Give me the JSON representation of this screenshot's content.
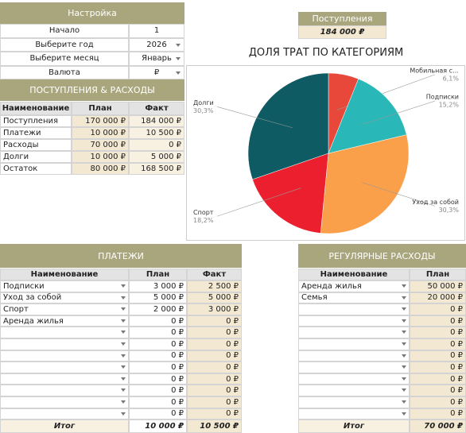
{
  "settings": {
    "title": "Настройка",
    "rows": [
      [
        "Начало",
        1
      ],
      [
        "Выберите год",
        2026
      ],
      [
        "Выберите месяц",
        "Январь"
      ],
      [
        "Валюта",
        "₽"
      ]
    ]
  },
  "income_box": {
    "title": "Поступления",
    "value": "184 000 ₽"
  },
  "summary": {
    "title": "ПОСТУПЛЕНИЯ & РАСХОДЫ",
    "columns": [
      "Наименование",
      "План",
      "Факт"
    ],
    "rows": [
      [
        "Поступления",
        "170 000 ₽",
        "184 000 ₽"
      ],
      [
        "Платежи",
        "10 000 ₽",
        "10 500 ₽"
      ],
      [
        "Расходы",
        "70 000 ₽",
        "0 ₽"
      ],
      [
        "Долги",
        "10 000 ₽",
        "5 000 ₽"
      ],
      [
        "Остаток",
        "80 000 ₽",
        "168 500 ₽"
      ]
    ]
  },
  "chart_data": {
    "type": "pie",
    "title": "ДОЛЯ ТРАТ ПО КАТЕГОРИЯМ",
    "categories": [
      "Мобильная с…",
      "Подписки",
      "Уход за собой",
      "Спорт",
      "Долги"
    ],
    "values": [
      6.1,
      15.2,
      30.3,
      18.2,
      30.3
    ],
    "value_labels": [
      "6,1%",
      "15,2%",
      "30,3%",
      "18,2%",
      "30,3%"
    ],
    "colors": [
      "#e8483a",
      "#2ab7b8",
      "#fa9f4a",
      "#ec1f2e",
      "#0f5b63"
    ]
  },
  "payments": {
    "title": "ПЛАТЕЖИ",
    "columns": [
      "Наименование",
      "План",
      "Факт"
    ],
    "rows": [
      [
        "Подписки",
        "3 000 ₽",
        "2 500 ₽"
      ],
      [
        "Уход за собой",
        "5 000 ₽",
        "5 000 ₽"
      ],
      [
        "Спорт",
        "2 000 ₽",
        "3 000 ₽"
      ],
      [
        "Аренда жилья",
        "0 ₽",
        "0 ₽"
      ],
      [
        null,
        "0 ₽",
        "0 ₽"
      ],
      [
        null,
        "0 ₽",
        "0 ₽"
      ],
      [
        null,
        "0 ₽",
        "0 ₽"
      ],
      [
        null,
        "0 ₽",
        "0 ₽"
      ],
      [
        null,
        "0 ₽",
        "0 ₽"
      ],
      [
        null,
        "0 ₽",
        "0 ₽"
      ],
      [
        null,
        "0 ₽",
        "0 ₽"
      ],
      [
        null,
        "0 ₽",
        "0 ₽"
      ]
    ],
    "total": [
      "Итог",
      "10 000 ₽",
      "10 500 ₽"
    ]
  },
  "regular": {
    "title": "РЕГУЛЯРНЫЕ РАСХОДЫ",
    "columns": [
      "Наименование",
      "План"
    ],
    "rows": [
      [
        "Аренда жилья",
        "50 000 ₽"
      ],
      [
        "Семья",
        "20 000 ₽"
      ],
      [
        null,
        "0 ₽"
      ],
      [
        null,
        "0 ₽"
      ],
      [
        null,
        "0 ₽"
      ],
      [
        null,
        "0 ₽"
      ],
      [
        null,
        "0 ₽"
      ],
      [
        null,
        "0 ₽"
      ],
      [
        null,
        "0 ₽"
      ],
      [
        null,
        "0 ₽"
      ],
      [
        null,
        "0 ₽"
      ],
      [
        null,
        "0 ₽"
      ]
    ],
    "total": [
      "Итог",
      "70 000 ₽"
    ]
  }
}
